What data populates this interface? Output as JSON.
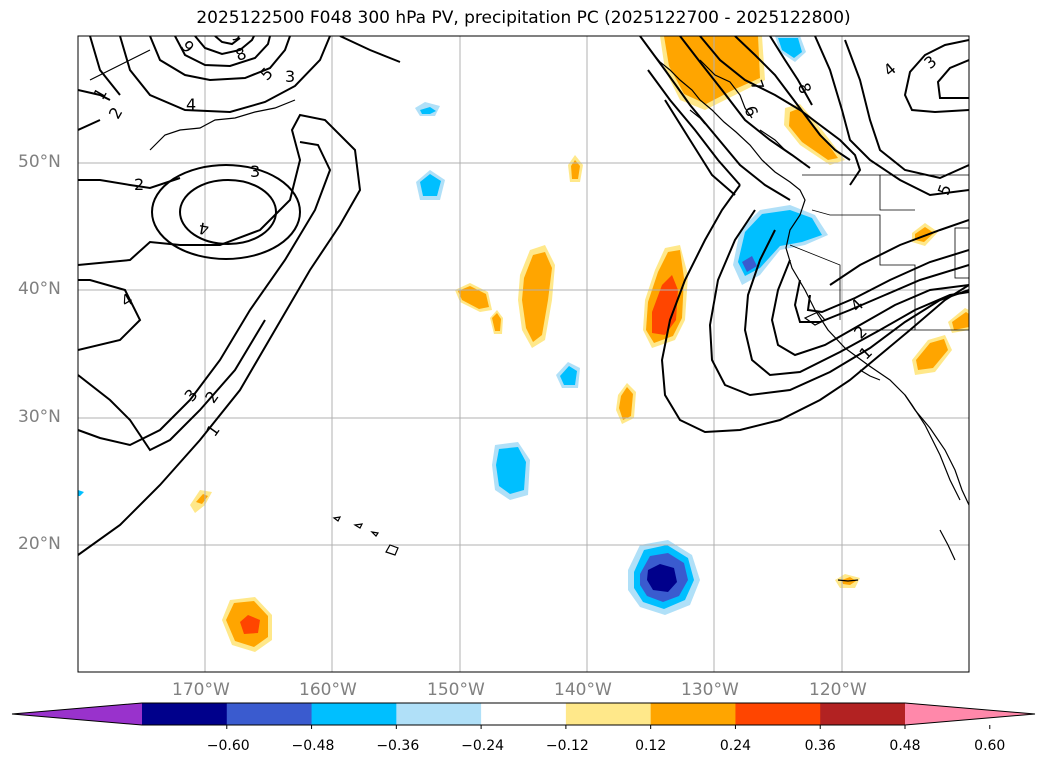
{
  "title": "2025122500 F048 300 hPa PV, precipitation PC (2025122700 - 2025122800)",
  "map": {
    "lon_range": [
      -180,
      -110
    ],
    "lat_range": [
      10,
      60
    ],
    "lat_labels": [
      "50°N",
      "40°N",
      "30°N",
      "20°N"
    ],
    "lon_labels": [
      "170°W",
      "160°W",
      "150°W",
      "140°W",
      "130°W",
      "120°W"
    ]
  },
  "colorbar": {
    "ticks": [
      "−0.60",
      "−0.48",
      "−0.36",
      "−0.24",
      "−0.12",
      "0.12",
      "0.24",
      "0.36",
      "0.48",
      "0.60"
    ],
    "colors": [
      "#9932cc",
      "#00008b",
      "#3a5bcf",
      "#00bfff",
      "#b0e0f8",
      "#ffffff",
      "#ffe88a",
      "#ffa500",
      "#ff4500",
      "#b22222",
      "#ff88aa"
    ]
  },
  "contour_labels": [
    "1",
    "2",
    "2",
    "3",
    "3",
    "3",
    "4",
    "4",
    "4",
    "5",
    "5",
    "6",
    "7",
    "8",
    "8",
    "9",
    "3",
    "2",
    "1",
    "4",
    "1",
    "2",
    "3",
    "4"
  ]
}
